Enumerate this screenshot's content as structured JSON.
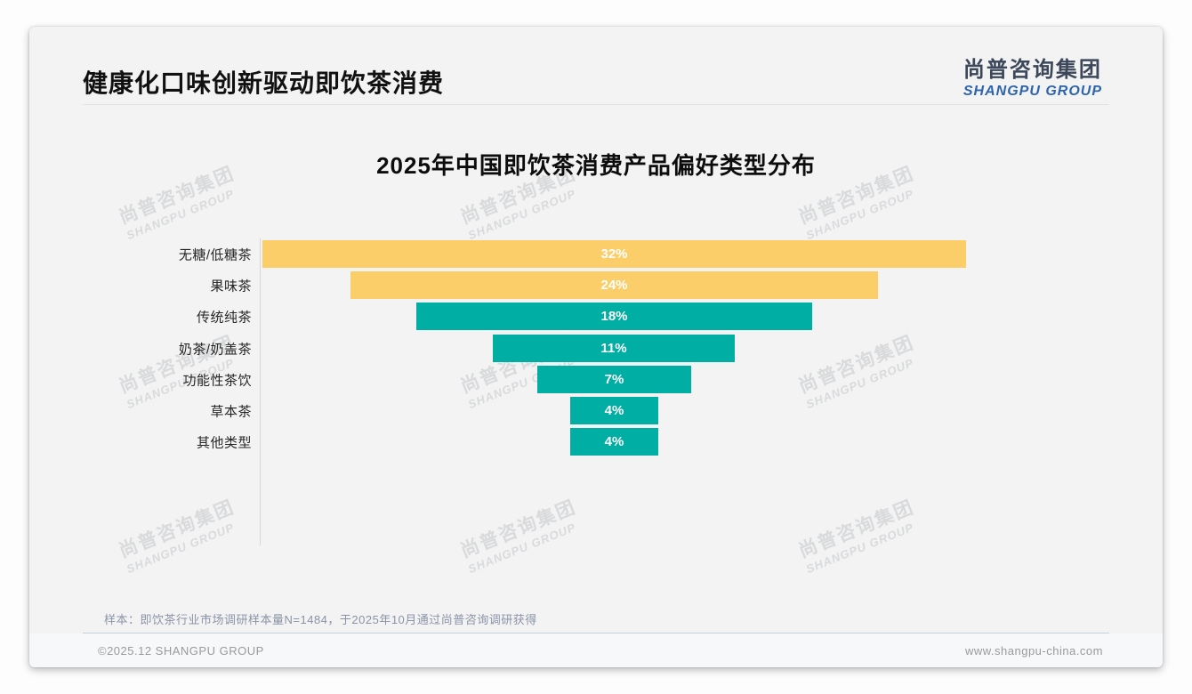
{
  "header": {
    "title": "健康化口味创新驱动即饮茶消费",
    "logo_cn": "尚普咨询集团",
    "logo_en": "SHANGPU GROUP"
  },
  "chart_data": {
    "type": "bar",
    "variant": "centered-funnel",
    "title": "2025年中国即饮茶消费产品偏好类型分布",
    "categories": [
      "无糖/低糖茶",
      "果味茶",
      "传统纯茶",
      "奶茶/奶盖茶",
      "功能性茶饮",
      "草本茶",
      "其他类型"
    ],
    "values": [
      32,
      24,
      18,
      11,
      7,
      4,
      4
    ],
    "value_labels": [
      "32%",
      "24%",
      "18%",
      "11%",
      "7%",
      "4%",
      "4%"
    ],
    "bar_colors": [
      "#fcce69",
      "#fcce69",
      "#00aea4",
      "#00aea4",
      "#00aea4",
      "#00aea4",
      "#00aea4"
    ],
    "unit": "percent",
    "xlim": [
      0,
      32
    ],
    "grid": "off",
    "legend": "none",
    "accent_yellow": "#fcce69",
    "accent_teal": "#00aea4"
  },
  "watermark": {
    "line1": "尚普咨询集团",
    "line2": "SHANGPU GROUP"
  },
  "footnote": "样本：即饮茶行业市场调研样本量N=1484，于2025年10月通过尚普咨询调研获得",
  "footer": {
    "left": "©2025.12 SHANGPU GROUP",
    "right": "www.shangpu-china.com"
  }
}
